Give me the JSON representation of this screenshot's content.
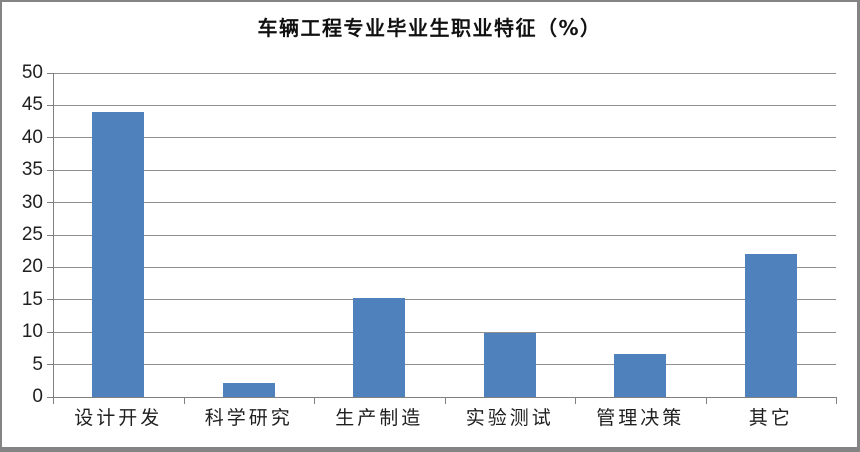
{
  "frame": {
    "background": "#ffffff",
    "border_color": "#848484"
  },
  "chart_data": {
    "type": "bar",
    "title": "车辆工程专业毕业生职业特征（%）",
    "categories": [
      "设计开发",
      "科学研究",
      "生产制造",
      "实验测试",
      "管理决策",
      "其它"
    ],
    "values": [
      44,
      2.2,
      15.3,
      9.9,
      6.6,
      22
    ],
    "xlabel": "",
    "ylabel": "",
    "ylim": [
      0,
      50
    ],
    "ytick_step": 5,
    "ytick_labels": [
      "0",
      "5",
      "10",
      "15",
      "20",
      "25",
      "30",
      "35",
      "40",
      "45",
      "50"
    ],
    "grid": "horizontal",
    "legend": "none",
    "bar_color": "#4F81BD",
    "gridline_color": "#8f8f8f",
    "axis_color": "#808080",
    "text_color": "#1f1f1f"
  }
}
